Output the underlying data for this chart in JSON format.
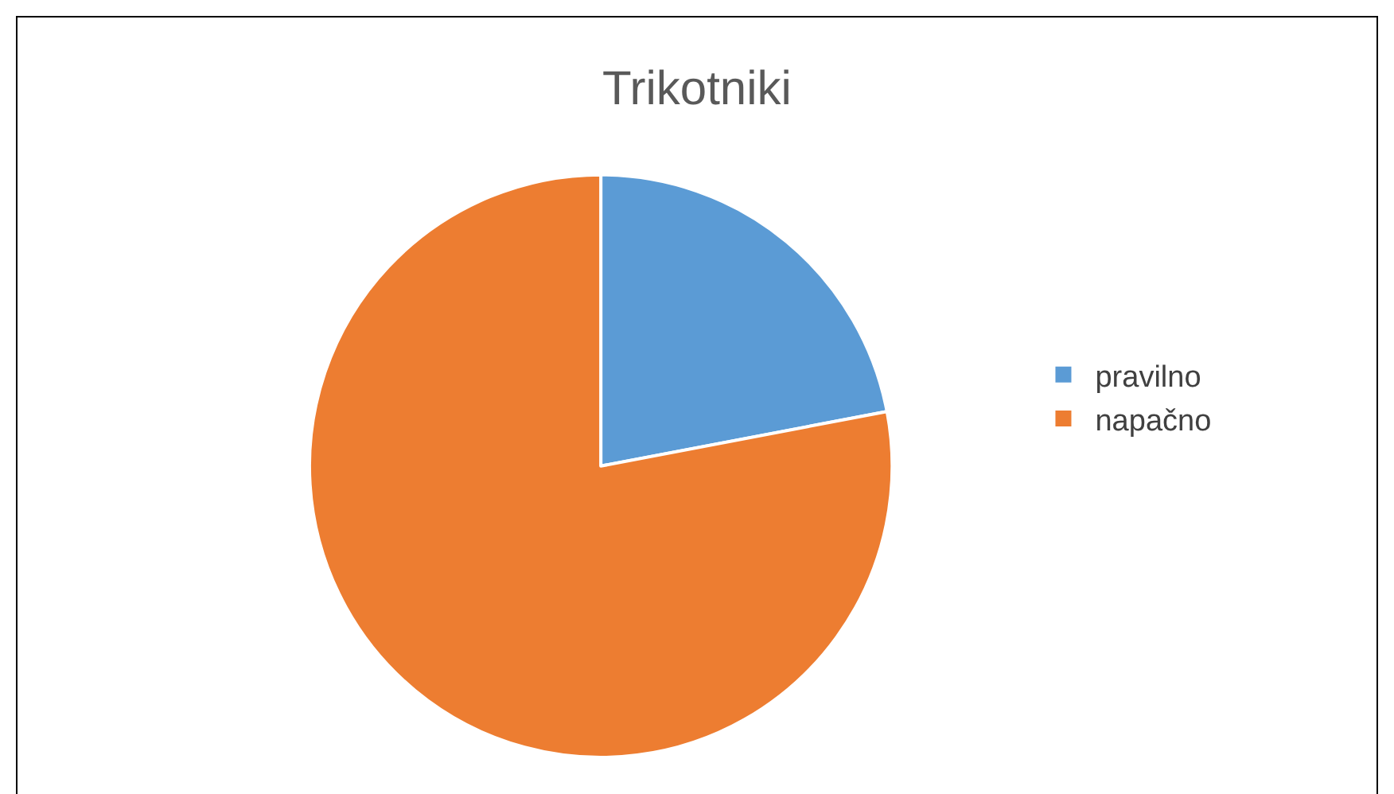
{
  "chart_data": {
    "type": "pie",
    "title": "Trikotniki",
    "categories": [
      "pravilno",
      "napačno"
    ],
    "values": [
      22,
      78
    ],
    "colors": [
      "#5b9bd5",
      "#ed7d31"
    ],
    "legend": "right"
  }
}
